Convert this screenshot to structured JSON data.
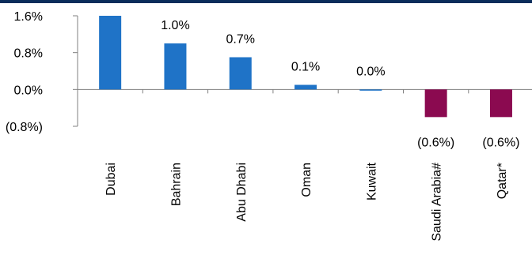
{
  "chart_data": {
    "type": "bar",
    "categories": [
      "Dubai",
      "Bahrain",
      "Abu Dhabi",
      "Oman",
      "Kuwait",
      "Saudi Arabia#",
      "Qatar*"
    ],
    "values": [
      1.6,
      1.0,
      0.7,
      0.1,
      0.0,
      -0.6,
      -0.6
    ],
    "data_labels": [
      "",
      "1.0%",
      "0.7%",
      "0.1%",
      "0.0%",
      "(0.6%)",
      "(0.6%)"
    ],
    "y_ticks": [
      {
        "value": 1.6,
        "label": "1.6%"
      },
      {
        "value": 0.8,
        "label": "0.8%"
      },
      {
        "value": 0.0,
        "label": "0.0%"
      },
      {
        "value": -0.8,
        "label": "(0.8%)"
      }
    ],
    "ylim": [
      -0.8,
      1.6
    ],
    "grid": false,
    "colors": {
      "positive": "#1f73c7",
      "negative": "#8b0a50",
      "top_bar": "#0b2d5b"
    }
  }
}
